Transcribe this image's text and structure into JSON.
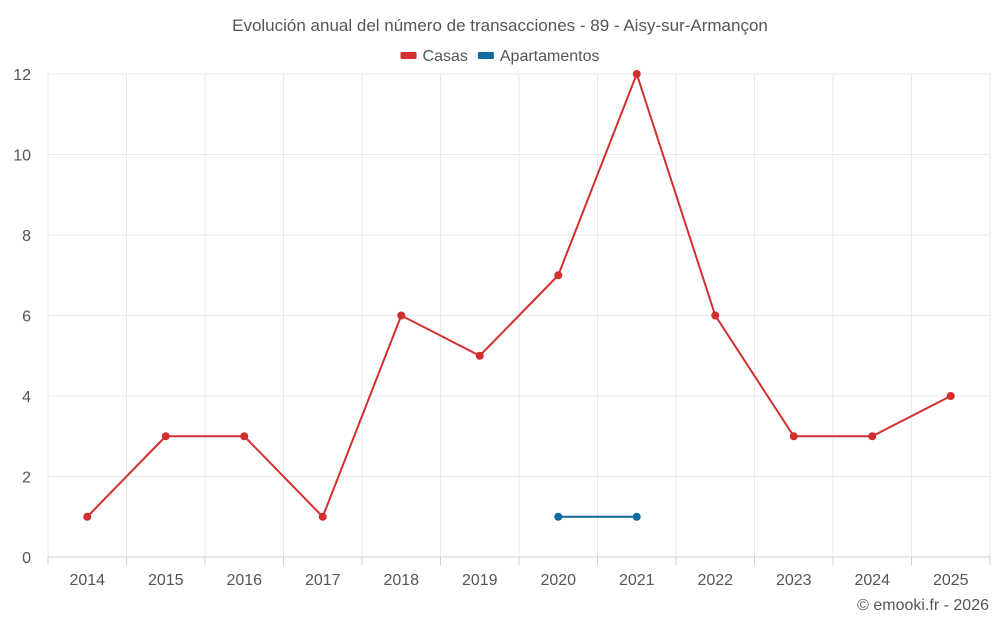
{
  "chart_data": {
    "type": "line",
    "title": "Evolución anual del número de transacciones - 89 - Aisy-sur-Armançon",
    "categories": [
      "2014",
      "2015",
      "2016",
      "2017",
      "2018",
      "2019",
      "2020",
      "2021",
      "2022",
      "2023",
      "2024",
      "2025"
    ],
    "ylim": [
      0,
      12
    ],
    "yticks": [
      0,
      2,
      4,
      6,
      8,
      10,
      12
    ],
    "xlabel": "",
    "ylabel": "",
    "grid": true,
    "legend_position": "top-center",
    "series": [
      {
        "name": "Casas",
        "color": "#d32f2f",
        "values": [
          1,
          3,
          3,
          1,
          6,
          5,
          7,
          12,
          6,
          3,
          3,
          4
        ]
      },
      {
        "name": "Apartamentos",
        "color": "#0f6aa0",
        "values": [
          null,
          null,
          null,
          null,
          null,
          null,
          1,
          1,
          null,
          null,
          null,
          null
        ]
      }
    ]
  },
  "credit": "© emooki.fr - 2026"
}
